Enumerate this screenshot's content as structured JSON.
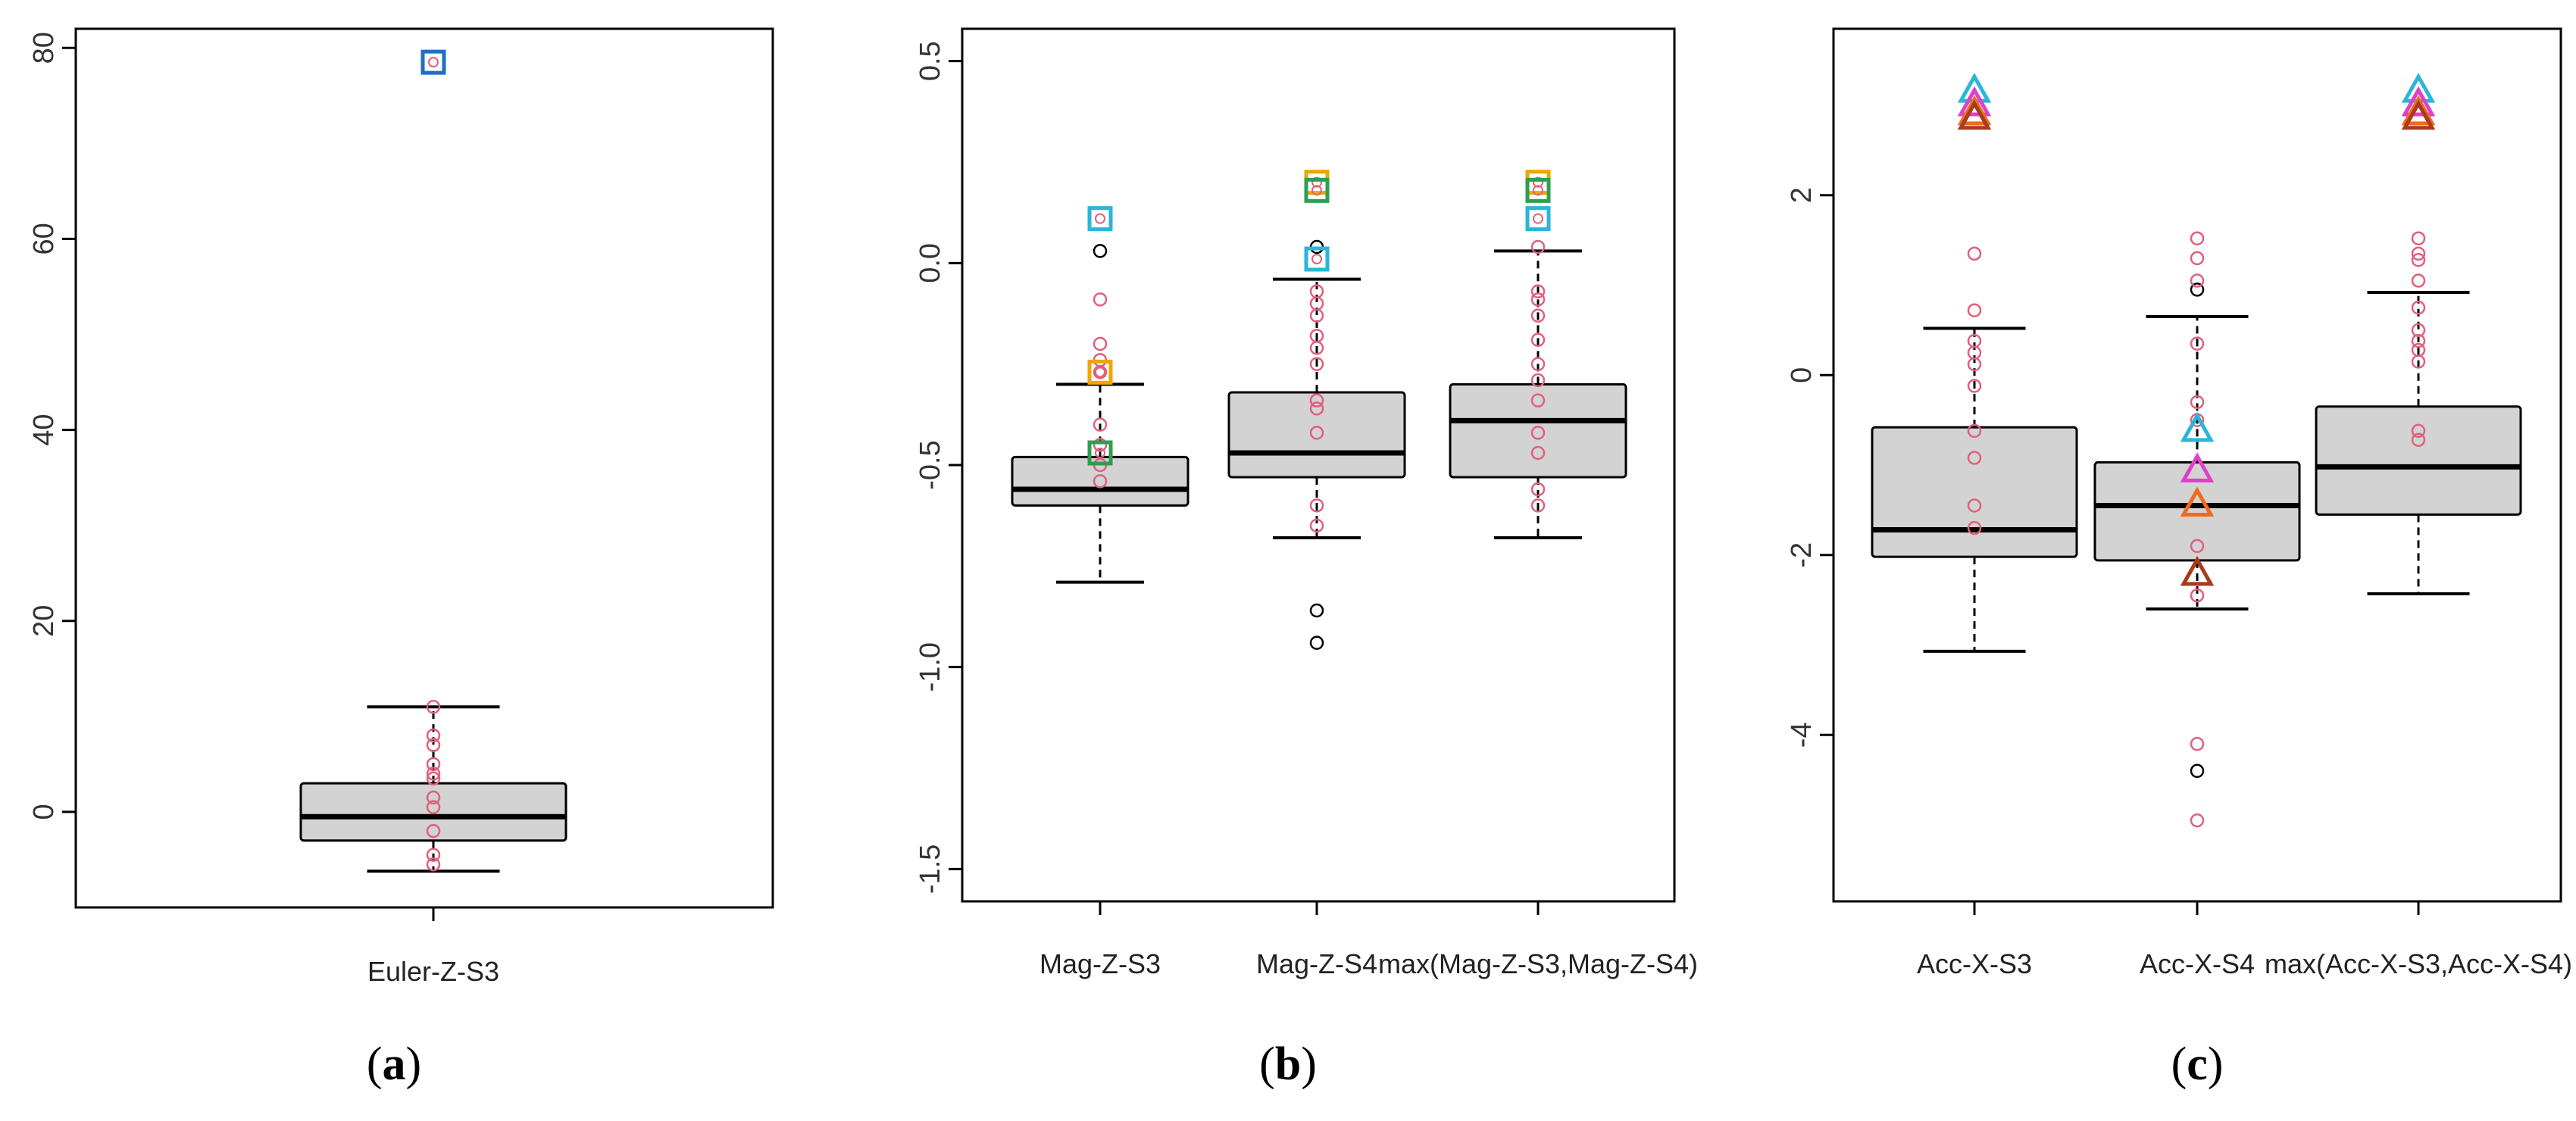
{
  "colors": {
    "box_fill": "#d3d3d3",
    "outline": "#000000",
    "point_pink": "#e0607e",
    "cyan": "#29b6d9",
    "orange": "#f0a500",
    "green": "#2e9e4f",
    "blue": "#1f6fc4",
    "magenta": "#e040c8",
    "orange_red": "#f26a1b",
    "brown": "#a83b1e"
  },
  "chart_data": [
    {
      "id": "a",
      "caption": "a",
      "type": "box",
      "ylim": [
        -10,
        82
      ],
      "yticks": [
        0,
        20,
        40,
        60,
        80
      ],
      "ytick_labels": [
        "0",
        "20",
        "40",
        "60",
        "80"
      ],
      "categories": [
        "Euler-Z-S3"
      ],
      "boxes": [
        {
          "whisker_low": -6.2,
          "q1": -3,
          "median": -0.5,
          "q3": 3,
          "whisker_high": 11,
          "outliers": [],
          "points": [
            11,
            8,
            7,
            5,
            4,
            3.5,
            1.5,
            0.5,
            -2,
            -4.5,
            -5.5
          ],
          "markers": [
            {
              "shape": "square",
              "color": "blue",
              "value": 78.5
            }
          ]
        }
      ]
    },
    {
      "id": "b",
      "caption": "b",
      "type": "box",
      "ylim": [
        -1.58,
        0.58
      ],
      "yticks": [
        -1.5,
        -1.0,
        -0.5,
        0.0,
        0.5
      ],
      "ytick_labels": [
        "-1.5",
        "-1.0",
        "-0.5",
        "0.0",
        "0.5"
      ],
      "categories": [
        "Mag-Z-S3",
        "Mag-Z-S4",
        "max(Mag-Z-S3,Mag-Z-S4)"
      ],
      "boxes": [
        {
          "whisker_low": -0.79,
          "q1": -0.6,
          "median": -0.56,
          "q3": -0.48,
          "whisker_high": -0.3,
          "outliers": [
            0.03
          ],
          "points": [
            -0.09,
            -0.2,
            -0.24,
            -0.27,
            -0.4,
            -0.45,
            -0.5,
            -0.54
          ],
          "markers": [
            {
              "shape": "square",
              "color": "cyan",
              "value": 0.11
            },
            {
              "shape": "square",
              "color": "orange",
              "value": -0.27
            },
            {
              "shape": "square",
              "color": "green",
              "value": -0.47
            }
          ]
        },
        {
          "whisker_low": -0.68,
          "q1": -0.53,
          "median": -0.47,
          "q3": -0.32,
          "whisker_high": -0.04,
          "outliers": [
            0.04,
            -0.86,
            -0.94
          ],
          "points": [
            -0.07,
            -0.1,
            -0.13,
            -0.18,
            -0.21,
            -0.25,
            -0.34,
            -0.36,
            -0.42,
            -0.6,
            -0.65
          ],
          "markers": [
            {
              "shape": "square",
              "color": "orange",
              "value": 0.2
            },
            {
              "shape": "square",
              "color": "green",
              "value": 0.18
            },
            {
              "shape": "square",
              "color": "cyan",
              "value": 0.01
            }
          ]
        },
        {
          "whisker_low": -0.68,
          "q1": -0.53,
          "median": -0.39,
          "q3": -0.3,
          "whisker_high": 0.03,
          "outliers": [],
          "points": [
            0.04,
            -0.07,
            -0.09,
            -0.13,
            -0.19,
            -0.25,
            -0.29,
            -0.34,
            -0.42,
            -0.47,
            -0.56,
            -0.6
          ],
          "markers": [
            {
              "shape": "square",
              "color": "orange",
              "value": 0.2
            },
            {
              "shape": "square",
              "color": "green",
              "value": 0.18
            },
            {
              "shape": "square",
              "color": "cyan",
              "value": 0.11
            }
          ]
        }
      ]
    },
    {
      "id": "c",
      "caption": "c",
      "type": "box",
      "ylim": [
        -5.85,
        3.85
      ],
      "yticks": [
        -4,
        -2,
        0,
        2
      ],
      "ytick_labels": [
        "-4",
        "-2",
        "0",
        "2"
      ],
      "categories": [
        "Acc-X-S3",
        "Acc-X-S4",
        "max(Acc-X-S3,Acc-X-S4)"
      ],
      "boxes": [
        {
          "whisker_low": -3.07,
          "q1": -2.02,
          "median": -1.72,
          "q3": -0.58,
          "whisker_high": 0.52,
          "outliers": [],
          "points": [
            1.35,
            0.72,
            0.38,
            0.25,
            0.12,
            -0.12,
            -0.62,
            -0.92,
            -1.45,
            -1.7
          ],
          "markers": [
            {
              "shape": "triangle",
              "color": "cyan",
              "value": 3.15
            },
            {
              "shape": "triangle",
              "color": "magenta",
              "value": 3.0
            },
            {
              "shape": "triangle",
              "color": "orange_red",
              "value": 2.9
            },
            {
              "shape": "triangle",
              "color": "brown",
              "value": 2.85
            }
          ]
        },
        {
          "whisker_low": -2.6,
          "q1": -2.06,
          "median": -1.45,
          "q3": -0.97,
          "whisker_high": 0.65,
          "outliers": [
            0.95,
            -4.4
          ],
          "points": [
            1.52,
            1.3,
            1.05,
            0.35,
            -0.3,
            -0.5,
            -1.9,
            -2.45,
            -4.1,
            -4.95
          ],
          "markers": [
            {
              "shape": "triangle",
              "color": "cyan",
              "value": -0.62
            },
            {
              "shape": "triangle",
              "color": "magenta",
              "value": -1.07
            },
            {
              "shape": "triangle",
              "color": "orange_red",
              "value": -1.45
            },
            {
              "shape": "triangle",
              "color": "brown",
              "value": -2.22
            }
          ]
        },
        {
          "whisker_low": -2.43,
          "q1": -1.55,
          "median": -1.02,
          "q3": -0.35,
          "whisker_high": 0.92,
          "outliers": [],
          "points": [
            1.52,
            1.35,
            1.28,
            1.05,
            0.75,
            0.5,
            0.38,
            0.28,
            0.15,
            -0.62,
            -0.72
          ],
          "markers": [
            {
              "shape": "triangle",
              "color": "cyan",
              "value": 3.15
            },
            {
              "shape": "triangle",
              "color": "magenta",
              "value": 3.0
            },
            {
              "shape": "triangle",
              "color": "orange_red",
              "value": 2.9
            },
            {
              "shape": "triangle",
              "color": "brown",
              "value": 2.85
            }
          ]
        }
      ]
    }
  ]
}
